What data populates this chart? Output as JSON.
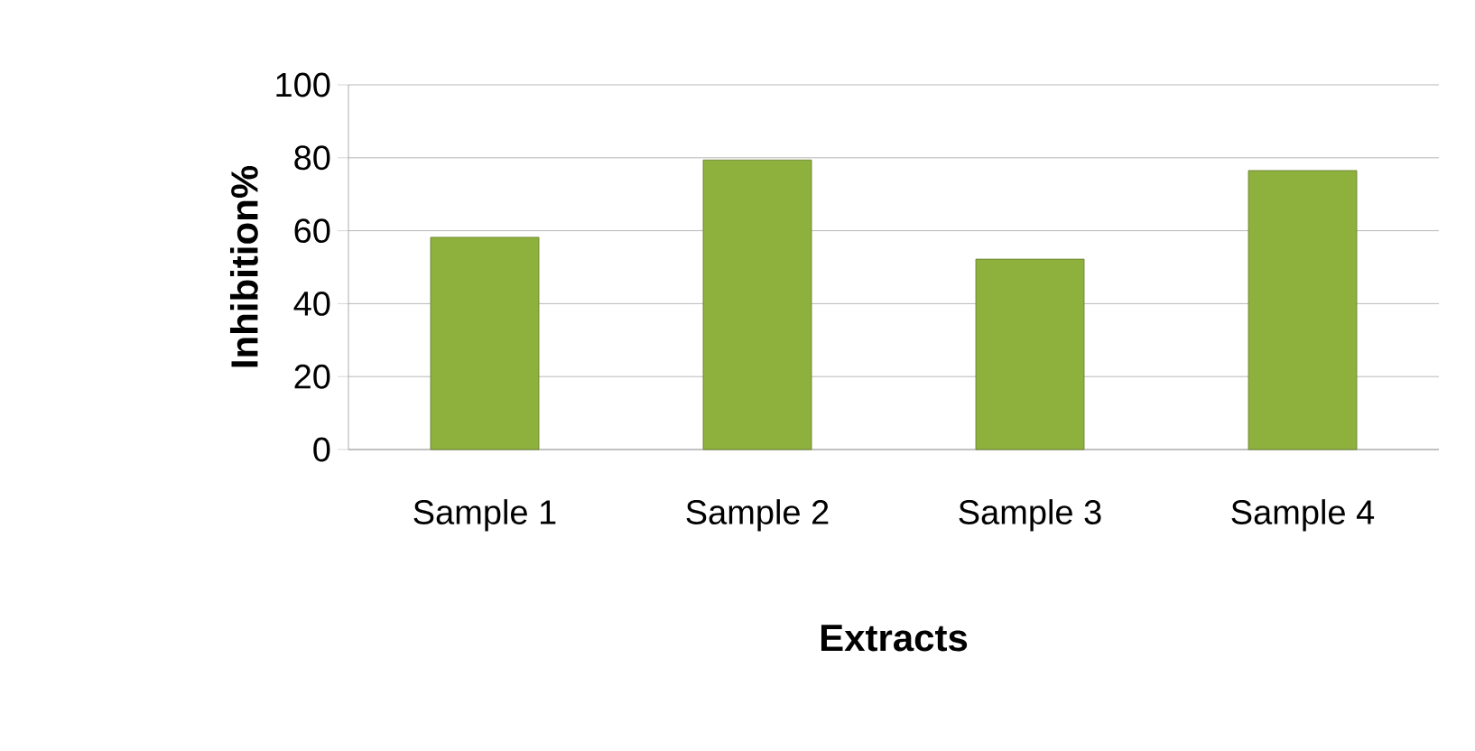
{
  "chart_data": {
    "type": "bar",
    "xlabel": "Extracts",
    "ylabel": "Inhibition%",
    "categories": [
      "Sample 1",
      "Sample 2",
      "Sample 3",
      "Sample 4"
    ],
    "values": [
      58.2,
      79.4,
      52.2,
      76.5
    ],
    "color": "#8db13c",
    "ylim": [
      0,
      100
    ],
    "yticks": [
      0,
      20,
      40,
      60,
      80,
      100
    ],
    "grid": "y"
  }
}
